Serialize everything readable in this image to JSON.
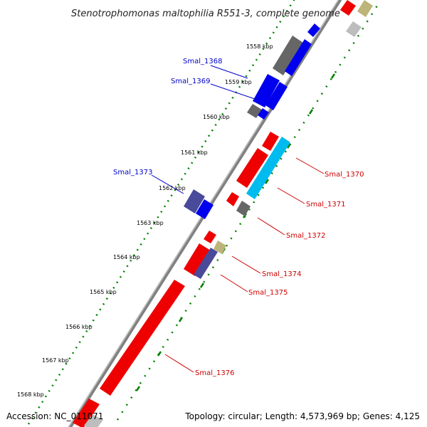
{
  "title": "Stenotrophomonas maltophilia R551-3, complete genome",
  "footer": {
    "accession": "Accession: NC_011071",
    "topology": "Topology: circular; Length: 4,573,969 bp; Genes: 4,125"
  },
  "ticks": [
    "1558 kbp",
    "1559 kbp",
    "1560 kbp",
    "1561 kbp",
    "1562 kbp",
    "1563 kbp",
    "1564 kbp",
    "1565 kbp",
    "1566 kbp",
    "1567 kbp",
    "1568 kbp"
  ],
  "gene_labels": [
    {
      "text": "Smal_1368",
      "color": "#0000cc"
    },
    {
      "text": "Smal_1369",
      "color": "#0000cc"
    },
    {
      "text": "Smal_1373",
      "color": "#0000cc"
    },
    {
      "text": "Smal_1370",
      "color": "#cc0000"
    },
    {
      "text": "Smal_1371",
      "color": "#cc0000"
    },
    {
      "text": "Smal_1372",
      "color": "#cc0000"
    },
    {
      "text": "Smal_1374",
      "color": "#cc0000"
    },
    {
      "text": "Smal_1375",
      "color": "#cc0000"
    },
    {
      "text": "Smal_1376",
      "color": "#cc0000"
    }
  ],
  "colors": {
    "backbone": "#808080",
    "tick_track": "#008000",
    "blue_gene": "#0000ee",
    "red_gene": "#ee0000",
    "cyan_gene": "#00bbee",
    "gray_gene": "#666666",
    "purple_gene": "#4a4a9a",
    "khaki_gene": "#bdb47a"
  }
}
